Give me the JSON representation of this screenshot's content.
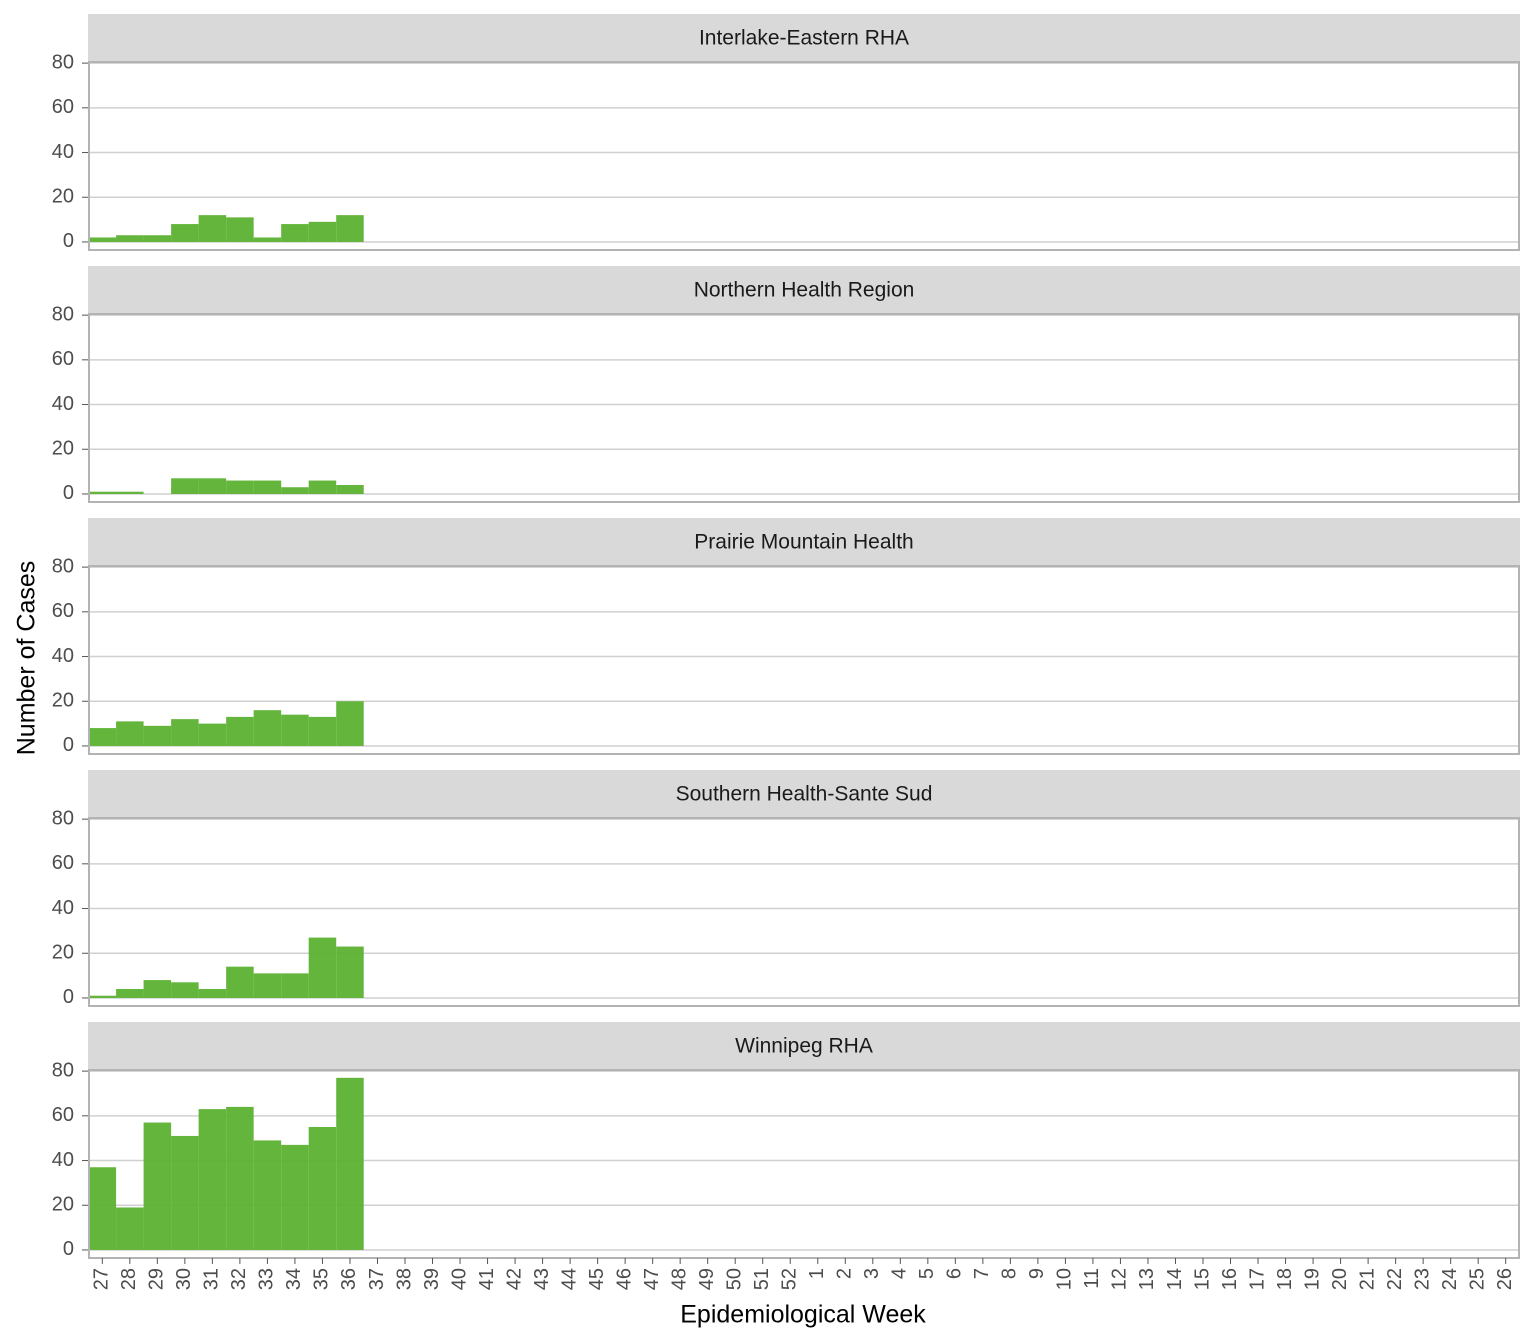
{
  "chart_data": {
    "type": "bar",
    "x_label": "Epidemiological Week",
    "y_label": "Number of Cases",
    "categories": [
      "27",
      "28",
      "29",
      "30",
      "31",
      "32",
      "33",
      "34",
      "35",
      "36",
      "37",
      "38",
      "39",
      "40",
      "41",
      "42",
      "43",
      "44",
      "45",
      "46",
      "47",
      "48",
      "49",
      "50",
      "51",
      "52",
      "1",
      "2",
      "3",
      "4",
      "5",
      "6",
      "7",
      "8",
      "9",
      "10",
      "11",
      "12",
      "13",
      "14",
      "15",
      "16",
      "17",
      "18",
      "19",
      "20",
      "21",
      "22",
      "23",
      "24",
      "25",
      "26"
    ],
    "series": [
      {
        "name": "Interlake-Eastern RHA",
        "color": "#5cb131",
        "values": [
          2,
          3,
          3,
          8,
          12,
          11,
          2,
          8,
          9,
          12,
          null,
          null,
          null,
          null,
          null,
          null,
          null,
          null,
          null,
          null,
          null,
          null,
          null,
          null,
          null,
          null,
          null,
          null,
          null,
          null,
          null,
          null,
          null,
          null,
          null,
          null,
          null,
          null,
          null,
          null,
          null,
          null,
          null,
          null,
          null,
          null,
          null,
          null,
          null,
          null,
          null,
          null
        ]
      },
      {
        "name": "Northern Health Region",
        "color": "#5cb131",
        "values": [
          1,
          1,
          0,
          7,
          7,
          6,
          6,
          3,
          6,
          4,
          null,
          null,
          null,
          null,
          null,
          null,
          null,
          null,
          null,
          null,
          null,
          null,
          null,
          null,
          null,
          null,
          null,
          null,
          null,
          null,
          null,
          null,
          null,
          null,
          null,
          null,
          null,
          null,
          null,
          null,
          null,
          null,
          null,
          null,
          null,
          null,
          null,
          null,
          null,
          null,
          null,
          null
        ]
      },
      {
        "name": "Prairie Mountain Health",
        "color": "#5cb131",
        "values": [
          8,
          11,
          9,
          12,
          10,
          13,
          16,
          14,
          13,
          20,
          null,
          null,
          null,
          null,
          null,
          null,
          null,
          null,
          null,
          null,
          null,
          null,
          null,
          null,
          null,
          null,
          null,
          null,
          null,
          null,
          null,
          null,
          null,
          null,
          null,
          null,
          null,
          null,
          null,
          null,
          null,
          null,
          null,
          null,
          null,
          null,
          null,
          null,
          null,
          null,
          null,
          null
        ]
      },
      {
        "name": "Southern Health-Sante Sud",
        "color": "#5cb131",
        "values": [
          1,
          4,
          8,
          7,
          4,
          14,
          11,
          11,
          27,
          23,
          null,
          null,
          null,
          null,
          null,
          null,
          null,
          null,
          null,
          null,
          null,
          null,
          null,
          null,
          null,
          null,
          null,
          null,
          null,
          null,
          null,
          null,
          null,
          null,
          null,
          null,
          null,
          null,
          null,
          null,
          null,
          null,
          null,
          null,
          null,
          null,
          null,
          null,
          null,
          null,
          null,
          null
        ]
      },
      {
        "name": "Winnipeg RHA",
        "color": "#5cb131",
        "values": [
          37,
          19,
          57,
          51,
          63,
          64,
          49,
          47,
          55,
          77,
          null,
          null,
          null,
          null,
          null,
          null,
          null,
          null,
          null,
          null,
          null,
          null,
          null,
          null,
          null,
          null,
          null,
          null,
          null,
          null,
          null,
          null,
          null,
          null,
          null,
          null,
          null,
          null,
          null,
          null,
          null,
          null,
          null,
          null,
          null,
          null,
          null,
          null,
          null,
          null,
          null,
          null
        ]
      }
    ],
    "ylim": [
      -3.6,
      80.5
    ],
    "yticks": [
      0,
      20,
      40,
      60,
      80
    ],
    "grid": true
  }
}
